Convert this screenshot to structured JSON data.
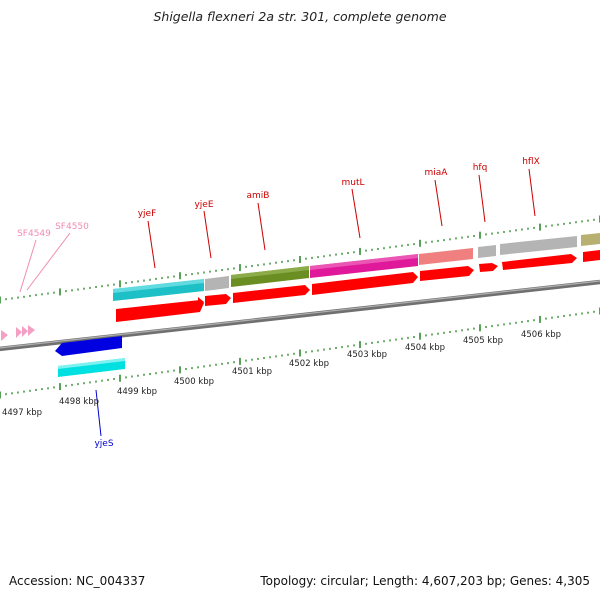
{
  "title": "Shigella flexneri 2a str. 301, complete genome",
  "footer": {
    "accession": "Accession: NC_004337",
    "summary": "Topology: circular; Length: 4,607,203 bp; Genes: 4,305"
  },
  "colors": {
    "backbone": "#808080",
    "tick": "#2e8b2e",
    "cds": "#ff0000",
    "label_red": "#cc0000",
    "label_pink": "#f08cb4",
    "label_blue": "#0000cc"
  },
  "kbp_labels": [
    "4497 kbp",
    "4498 kbp",
    "4499 kbp",
    "4500 kbp",
    "4501 kbp",
    "4502 kbp",
    "4503 kbp",
    "4504 kbp",
    "4505 kbp",
    "4506 kbp"
  ],
  "genes": [
    {
      "name": "yjeF",
      "color": "#cc0000"
    },
    {
      "name": "yjeE",
      "color": "#cc0000"
    },
    {
      "name": "amiB",
      "color": "#cc0000"
    },
    {
      "name": "mutL",
      "color": "#cc0000"
    },
    {
      "name": "miaA",
      "color": "#cc0000"
    },
    {
      "name": "hfq",
      "color": "#cc0000"
    },
    {
      "name": "hflX",
      "color": "#cc0000"
    },
    {
      "name": "SF4549",
      "color": "#f08cb4"
    },
    {
      "name": "SF4550",
      "color": "#f08cb4"
    },
    {
      "name": "yjeS",
      "color": "#0000cc"
    }
  ],
  "feature_colors": {
    "yjeF": "#1ec0c8",
    "yjeE": "#b4b4b4",
    "amiB": "#6b8e23",
    "mutL": "#e0189a",
    "miaA": "#f08080",
    "hfq": "#b4b4b4",
    "hflX": "#b4b4b4",
    "next": "#b8b070",
    "yjeS_forward": "#0000e0",
    "yjeS_feature": "#00e0e0"
  }
}
